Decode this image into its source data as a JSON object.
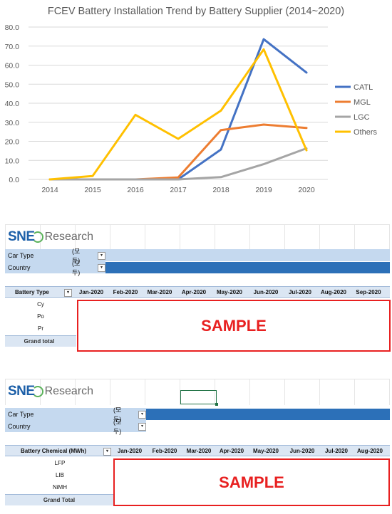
{
  "chart_data": {
    "type": "line",
    "title": "FCEV Battery Installation Trend by Battery Supplier (2014~2020)",
    "x": [
      "2014",
      "2015",
      "2016",
      "2017",
      "2018",
      "2019",
      "2020"
    ],
    "y_ticks": [
      "0.0",
      "10.0",
      "20.0",
      "30.0",
      "40.0",
      "50.0",
      "60.0",
      "70.0",
      "80.0"
    ],
    "ylim": [
      0,
      80
    ],
    "legend_position": "right",
    "grid": true,
    "series": [
      {
        "name": "CATL",
        "color": "#4472c4",
        "values": [
          0,
          0,
          0,
          0,
          15.7,
          73.6,
          56.1
        ]
      },
      {
        "name": "MGL",
        "color": "#ed7d31",
        "values": [
          0,
          0,
          0,
          1.0,
          25.9,
          28.8,
          27.0
        ]
      },
      {
        "name": "LGC",
        "color": "#a5a5a5",
        "values": [
          0,
          0,
          0,
          0,
          1.2,
          8.0,
          16.3
        ]
      },
      {
        "name": "Others",
        "color": "#ffc000",
        "values": [
          0,
          1.8,
          33.9,
          21.3,
          36.1,
          68.3,
          15.3
        ]
      }
    ]
  },
  "table1": {
    "logo_main": "SNE",
    "logo_sub": "Research",
    "filters": [
      {
        "label": "Car Type",
        "value": "(모두)"
      },
      {
        "label": "Country",
        "value": "(모두)"
      }
    ],
    "row_header": "Battery Type",
    "months": [
      "Jan-2020",
      "Feb-2020",
      "Mar-2020",
      "Apr-2020",
      "May-2020",
      "Jun-2020",
      "Jul-2020",
      "Aug-2020",
      "Sep-2020"
    ],
    "rows": [
      "Cy",
      "Po",
      "Pr"
    ],
    "total_label": "Grand total",
    "sample_text": "SAMPLE"
  },
  "table2": {
    "logo_main": "SNE",
    "logo_sub": "Research",
    "filters": [
      {
        "label": "Car Type",
        "value": "(모두)"
      },
      {
        "label": "Country",
        "value": "(모두)"
      }
    ],
    "row_header": "Battery Chemical (MWh)",
    "months": [
      "Jan-2020",
      "Feb-2020",
      "Mar-2020",
      "Apr-2020",
      "May-2020",
      "Jun-2020",
      "Jul-2020",
      "Aug-2020"
    ],
    "rows": [
      "LFP",
      "LIB",
      "NiMH"
    ],
    "total_label": "Grand Total",
    "sample_text": "SAMPLE"
  }
}
